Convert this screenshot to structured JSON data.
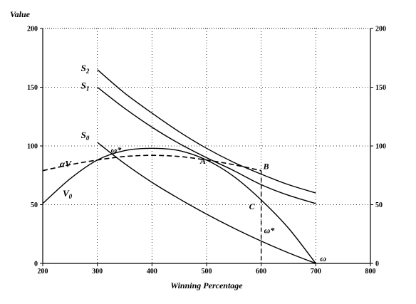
{
  "chart_data": {
    "type": "line",
    "ylabel": "Value",
    "xlabel": "Winning Percentage",
    "xlim": [
      200,
      800
    ],
    "ylim": [
      0,
      200
    ],
    "x_ticks": [
      "200",
      "300",
      "400",
      "500",
      "600",
      "700",
      "800"
    ],
    "y_ticks": [
      "0",
      "50",
      "100",
      "150",
      "200"
    ],
    "grid": "dotted",
    "right_axis_duplicate": true,
    "series": [
      {
        "key": "S2",
        "name": "S",
        "sub": "2",
        "style": "solid",
        "x": [
          300,
          350,
          400,
          450,
          500,
          550,
          600,
          650,
          700
        ],
        "y": [
          165,
          145,
          128,
          112,
          98,
          86,
          76,
          67,
          60
        ]
      },
      {
        "key": "S1",
        "name": "S",
        "sub": "1",
        "style": "solid",
        "x": [
          300,
          350,
          400,
          450,
          500,
          550,
          600,
          650,
          700
        ],
        "y": [
          150,
          132,
          116,
          102,
          90,
          79,
          67,
          58,
          51
        ]
      },
      {
        "key": "S0",
        "name": "S",
        "sub": "0",
        "style": "solid",
        "x": [
          300,
          350,
          400,
          450,
          500,
          550,
          600,
          650,
          700
        ],
        "y": [
          103,
          85,
          69,
          55,
          42,
          30,
          19,
          9,
          0
        ]
      },
      {
        "key": "V0",
        "name": "V",
        "sub": "0",
        "style": "solid",
        "x": [
          200,
          250,
          300,
          350,
          400,
          450,
          500,
          550,
          600,
          650,
          700
        ],
        "y": [
          51,
          72,
          88,
          96,
          98,
          96,
          88,
          74,
          54,
          30,
          0
        ]
      },
      {
        "key": "aV",
        "name": "αV",
        "sub": "",
        "style": "dashed",
        "x": [
          200,
          250,
          300,
          350,
          400,
          450,
          500,
          550,
          600
        ],
        "y": [
          79,
          84,
          88,
          91,
          92,
          91,
          88,
          84,
          79
        ]
      }
    ],
    "annotations": [
      {
        "text": "A",
        "x": 500,
        "y": 88
      },
      {
        "text": "B",
        "x": 600,
        "y": 79
      },
      {
        "text": "C",
        "x": 600,
        "y": 54
      },
      {
        "text": "ω*",
        "x": 330,
        "y": 93
      },
      {
        "text": "ω*",
        "x": 600,
        "y": 22
      },
      {
        "text": "ω",
        "x": 700,
        "y": 0
      }
    ],
    "vertical_guide": {
      "x": 600,
      "y_from": 0,
      "y_to": 79,
      "style": "dashed"
    }
  }
}
